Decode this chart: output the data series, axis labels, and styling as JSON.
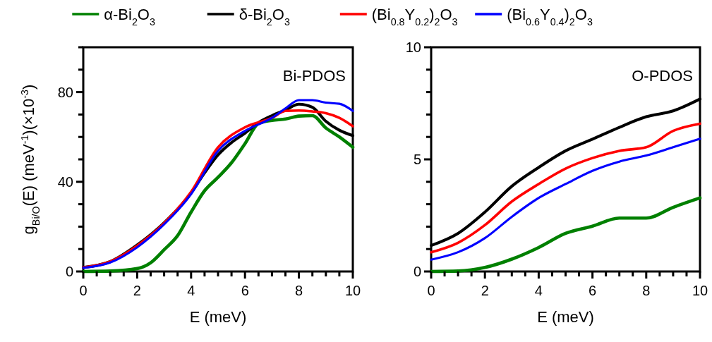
{
  "chart_data": [
    {
      "type": "line",
      "ylabel": "g$_{Bi/O}$(E) (meV$^{-1}$)(×10$^{-3}$)",
      "xlabel": "E (meV)",
      "annotations": [
        "Bi-PDOS"
      ],
      "legend": "top",
      "grid": false,
      "marker": "none",
      "line_style": "solid",
      "xlim": [
        0,
        10
      ],
      "ylim": [
        0,
        100
      ],
      "xticks": [
        0,
        {
          "value": 0.5,
          "label": null
        },
        2,
        {
          "value": 1,
          "label": null
        },
        {
          "value": 1.5,
          "label": null
        },
        {
          "value": 2.5,
          "label": null
        },
        {
          "value": 3,
          "label": null
        },
        {
          "value": 3.5,
          "label": null
        },
        4,
        {
          "value": 4.5,
          "label": null
        },
        {
          "value": 5,
          "label": null
        },
        {
          "value": 5.5,
          "label": null
        },
        6,
        {
          "value": 6.5,
          "label": null
        },
        {
          "value": 7,
          "label": null
        },
        {
          "value": 7.5,
          "label": null
        },
        8,
        {
          "value": 8.5,
          "label": null
        },
        {
          "value": 9,
          "label": null
        },
        {
          "value": 9.5,
          "label": null
        },
        10
      ],
      "yticks": [
        0,
        {
          "value": 10,
          "label": null
        },
        {
          "value": 20,
          "label": null
        },
        {
          "value": 30,
          "label": null
        },
        40,
        {
          "value": 50,
          "label": null
        },
        {
          "value": 60,
          "label": null
        },
        {
          "value": 70,
          "label": null
        },
        80,
        {
          "value": 90,
          "label": null
        },
        {
          "value": 100,
          "label": null
        }
      ],
      "series": [
        {
          "name": "α-Bi$_{2}$O$_{3}$",
          "color": "#008000",
          "x": [
            0,
            1,
            2,
            2.5,
            3,
            3.5,
            4,
            4.5,
            5,
            5.5,
            6,
            6.5,
            7,
            7.5,
            8,
            8.5,
            9,
            9.5,
            10
          ],
          "values": [
            0,
            0.2,
            1.3,
            3.9,
            9.7,
            16,
            26.5,
            36,
            42,
            48.5,
            57,
            66,
            67.4,
            68,
            69.3,
            69.5,
            64,
            60,
            55.4
          ]
        },
        {
          "name": "δ-Bi$_{2}$O$_{3}$",
          "color": "#000000",
          "x": [
            0,
            1,
            2,
            3,
            4,
            4.5,
            5,
            5.5,
            6,
            6.5,
            7,
            7.5,
            8,
            8.5,
            9,
            9.5,
            10
          ],
          "values": [
            1.8,
            4.4,
            11.8,
            21.7,
            35,
            44,
            52,
            57.5,
            61.7,
            66.4,
            69.5,
            72,
            74.6,
            73.2,
            67,
            63,
            60.6
          ]
        },
        {
          "name": "(Bi$_{0.8}$Y$_{0.2}$)$_{2}$O$_{3}$",
          "color": "#ff0000",
          "x": [
            0,
            1,
            2,
            3,
            4,
            5,
            6,
            7,
            7.5,
            8,
            8.5,
            9,
            9.5,
            10
          ],
          "values": [
            1.8,
            4.4,
            11.5,
            21.5,
            35.5,
            55.4,
            64.3,
            68.5,
            71.6,
            71.8,
            71.4,
            70.6,
            68.5,
            64.8
          ]
        },
        {
          "name": "(Bi$_{0.6}$Y$_{0.4}$)$_{2}$O$_{3}$",
          "color": "#0000ff",
          "x": [
            0,
            1,
            2,
            3,
            4,
            5,
            6,
            7,
            7.5,
            8,
            8.5,
            9,
            9.5,
            10
          ],
          "values": [
            1.6,
            4,
            10.8,
            21,
            34.5,
            53.8,
            62.7,
            68.5,
            72.7,
            76.4,
            76.4,
            75.3,
            74.8,
            71.6
          ]
        }
      ]
    },
    {
      "type": "line",
      "xlabel": "E (meV)",
      "annotations": [
        "O-PDOS"
      ],
      "grid": false,
      "marker": "none",
      "line_style": "solid",
      "xlim": [
        0,
        10
      ],
      "ylim": [
        0,
        10
      ],
      "xticks": [
        0,
        {
          "value": 0.5,
          "label": null
        },
        2,
        {
          "value": 1,
          "label": null
        },
        {
          "value": 1.5,
          "label": null
        },
        {
          "value": 2.5,
          "label": null
        },
        {
          "value": 3,
          "label": null
        },
        {
          "value": 3.5,
          "label": null
        },
        4,
        {
          "value": 4.5,
          "label": null
        },
        {
          "value": 5,
          "label": null
        },
        {
          "value": 5.5,
          "label": null
        },
        6,
        {
          "value": 6.5,
          "label": null
        },
        {
          "value": 7,
          "label": null
        },
        {
          "value": 7.5,
          "label": null
        },
        8,
        {
          "value": 8.5,
          "label": null
        },
        {
          "value": 9,
          "label": null
        },
        {
          "value": 9.5,
          "label": null
        },
        10
      ],
      "yticks": [
        0,
        {
          "value": 1,
          "label": null
        },
        {
          "value": 2,
          "label": null
        },
        {
          "value": 3,
          "label": null
        },
        {
          "value": 4,
          "label": null
        },
        5,
        {
          "value": 6,
          "label": null
        },
        {
          "value": 7,
          "label": null
        },
        {
          "value": 8,
          "label": null
        },
        {
          "value": 9,
          "label": null
        },
        10
      ],
      "series": [
        {
          "color": "#008000",
          "x": [
            0,
            1,
            2,
            3,
            4,
            5,
            6,
            7,
            8,
            9,
            10
          ],
          "values": [
            0,
            0.02,
            0.18,
            0.55,
            1.07,
            1.7,
            2.02,
            2.38,
            2.38,
            2.86,
            3.28
          ]
        },
        {
          "color": "#000000",
          "x": [
            0,
            1,
            2,
            3,
            4,
            5,
            6,
            7,
            8,
            9,
            10
          ],
          "values": [
            1.16,
            1.7,
            2.65,
            3.8,
            4.64,
            5.38,
            5.9,
            6.43,
            6.9,
            7.16,
            7.69
          ]
        },
        {
          "color": "#ff0000",
          "x": [
            0,
            1,
            2,
            3,
            4,
            5,
            6,
            7,
            8,
            9,
            10
          ],
          "values": [
            0.86,
            1.28,
            2.07,
            3.12,
            3.9,
            4.59,
            5.06,
            5.38,
            5.54,
            6.27,
            6.59
          ]
        },
        {
          "color": "#0000ff",
          "x": [
            0,
            1,
            2,
            3,
            4,
            5,
            6,
            7,
            8,
            9,
            10
          ],
          "values": [
            0.53,
            0.86,
            1.49,
            2.44,
            3.28,
            3.9,
            4.49,
            4.9,
            5.17,
            5.54,
            5.92
          ]
        }
      ]
    }
  ]
}
